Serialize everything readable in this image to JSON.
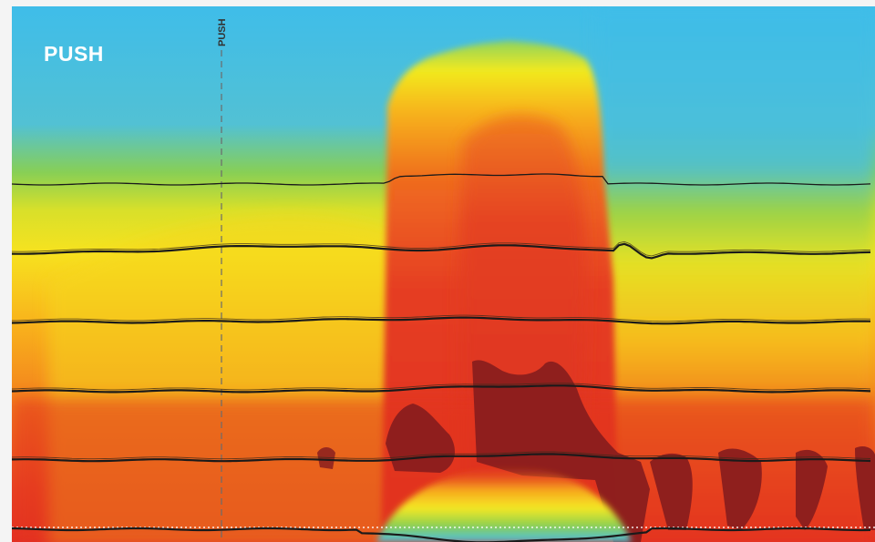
{
  "chart_data": {
    "type": "heatmap",
    "title": "PUSH",
    "marker": {
      "label": "PUSH"
    },
    "colors": {
      "background": "#f4f4f4",
      "cold": "#3fc0ea",
      "cool": "#7fce5a",
      "warm": "#f5e823",
      "hot": "#f7a21a",
      "hotter": "#e83b22",
      "hottest": "#8a1e1e"
    },
    "grid": false,
    "layer_count": 6
  }
}
